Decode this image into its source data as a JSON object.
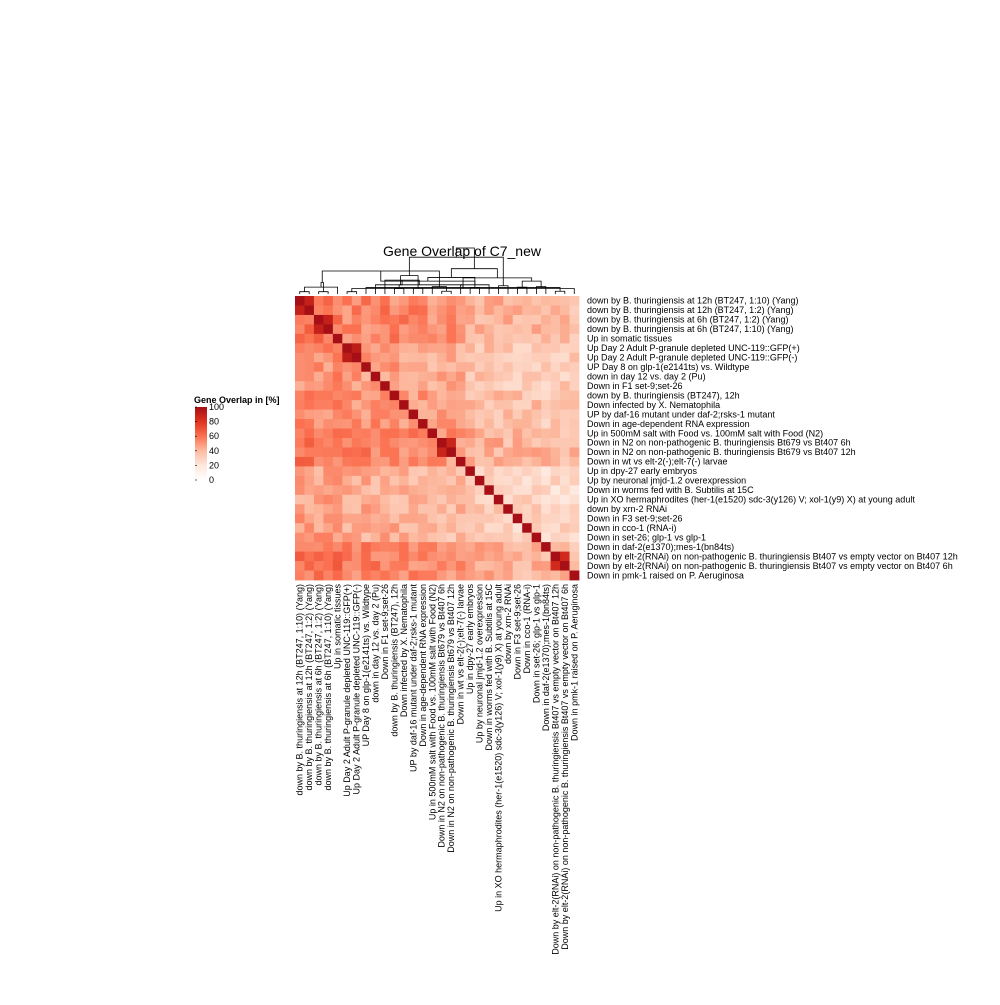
{
  "chart_data": {
    "type": "heatmap",
    "title": "Gene Overlap of C7_new",
    "legend": {
      "title": "Gene Overlap in [%]",
      "ticks": [
        100,
        80,
        60,
        40,
        20,
        0
      ],
      "range": [
        0,
        100
      ],
      "low_color": "#ffffff",
      "high_color": "#b2182b",
      "placement": "left"
    },
    "row_dendrogram": false,
    "column_dendrogram": true,
    "labels": [
      "down by B. thuringiensis at 12h (BT247, 1:10) (Yang)",
      "down by B. thuringiensis at 12h (BT247, 1:2) (Yang)",
      "down by B. thuringiensis at 6h (BT247, 1:2) (Yang)",
      "down by B. thuringiensis at 6h (BT247, 1:10) (Yang)",
      "Up in somatic tissues",
      "Up Day 2 Adult P-granule depleted UNC-119::GFP(+)",
      "Up Day 2 Adult P-granule depleted UNC-119::GFP(-)",
      "UP Day 8 on glp-1(e2141ts) vs. Wildtype",
      "down in day 12 vs. day 2 (Pu)",
      "Down in F1 set-9;set-26",
      "down by B. thuringiensis (BT247), 12h",
      "Down infected by X. Nematophila",
      "UP by daf-16 mutant under daf-2;rsks-1 mutant",
      "Down in age-dependent RNA expression",
      "Up in 500mM salt with  Food vs. 100mM salt with Food (N2)",
      "Down in N2 on non-pathogenic B. thuringiensis Bt679 vs Bt407 6h",
      "Down in N2 on non-pathogenic B. thuringiensis Bt679 vs Bt407 12h",
      "Down in wt vs elt-2(-);elt-7(-) larvae",
      "Up in dpy-27 early embryos",
      "Up by neuronal jmjd-1.2 overexpression",
      "Down in worms fed with B. Subtilis at 15C",
      "Up in XO hermaphrodites (her-1(e1520) sdc-3(y126) V; xol-1(y9) X) at young adult",
      "down by xrn-2 RNAi",
      "Down in F3 set-9;set-26",
      "Down in cco-1 (RNA-i)",
      "Down in set-26; glp-1  vs glp-1",
      "Down in daf-2(e1370);mes-1(bn84ts)",
      "Down by elt-2(RNAi) on non-pathogenic B. thuringiensis Bt407 vs empty vector on Bt407 12h",
      "Down by elt-2(RNAi) on non-pathogenic B. thuringiensis Bt407 vs empty vector on Bt407 6h",
      "Down in pmk-1 raised on P. Aeruginosa"
    ],
    "row_blocks": [
      [
        0,
        4,
        60
      ],
      [
        5,
        9,
        48
      ],
      [
        10,
        13,
        52
      ],
      [
        14,
        17,
        60
      ],
      [
        18,
        21,
        38
      ],
      [
        22,
        25,
        40
      ],
      [
        26,
        29,
        62
      ]
    ],
    "col_blocks": [
      [
        0,
        4,
        56
      ],
      [
        5,
        9,
        48
      ],
      [
        10,
        13,
        46
      ],
      [
        14,
        17,
        38
      ],
      [
        18,
        21,
        22
      ],
      [
        22,
        25,
        16
      ],
      [
        26,
        29,
        12
      ]
    ],
    "cluster_blocks": [
      [
        0,
        1,
        90
      ],
      [
        2,
        3,
        90
      ],
      [
        5,
        6,
        92
      ],
      [
        15,
        16,
        88
      ],
      [
        27,
        28,
        85
      ]
    ],
    "dendrogram_merges": [
      [
        0,
        1,
        0.05
      ],
      [
        2,
        3,
        0.05
      ],
      [
        5,
        6,
        0.05
      ],
      [
        15,
        16,
        0.06
      ],
      [
        27,
        28,
        0.06
      ],
      [
        30,
        4,
        0.15
      ],
      [
        31,
        35,
        0.25
      ],
      [
        34,
        7,
        0.14
      ],
      [
        37,
        8,
        0.2
      ],
      [
        38,
        9,
        0.3
      ],
      [
        10,
        11,
        0.12
      ],
      [
        12,
        13,
        0.13
      ],
      [
        39,
        40,
        0.2
      ],
      [
        33,
        14,
        0.16
      ],
      [
        41,
        42,
        0.4
      ],
      [
        36,
        43,
        0.5
      ],
      [
        18,
        19,
        0.14
      ],
      [
        17,
        20,
        0.2
      ],
      [
        45,
        46,
        0.28
      ],
      [
        21,
        22,
        0.18
      ],
      [
        47,
        48,
        0.36
      ],
      [
        23,
        24,
        0.15
      ],
      [
        25,
        26,
        0.16
      ],
      [
        51,
        52,
        0.28
      ],
      [
        32,
        29,
        0.12
      ],
      [
        53,
        54,
        0.35
      ],
      [
        50,
        55,
        0.55
      ],
      [
        44,
        49,
        0.8
      ],
      [
        56,
        57,
        1.0
      ]
    ]
  }
}
